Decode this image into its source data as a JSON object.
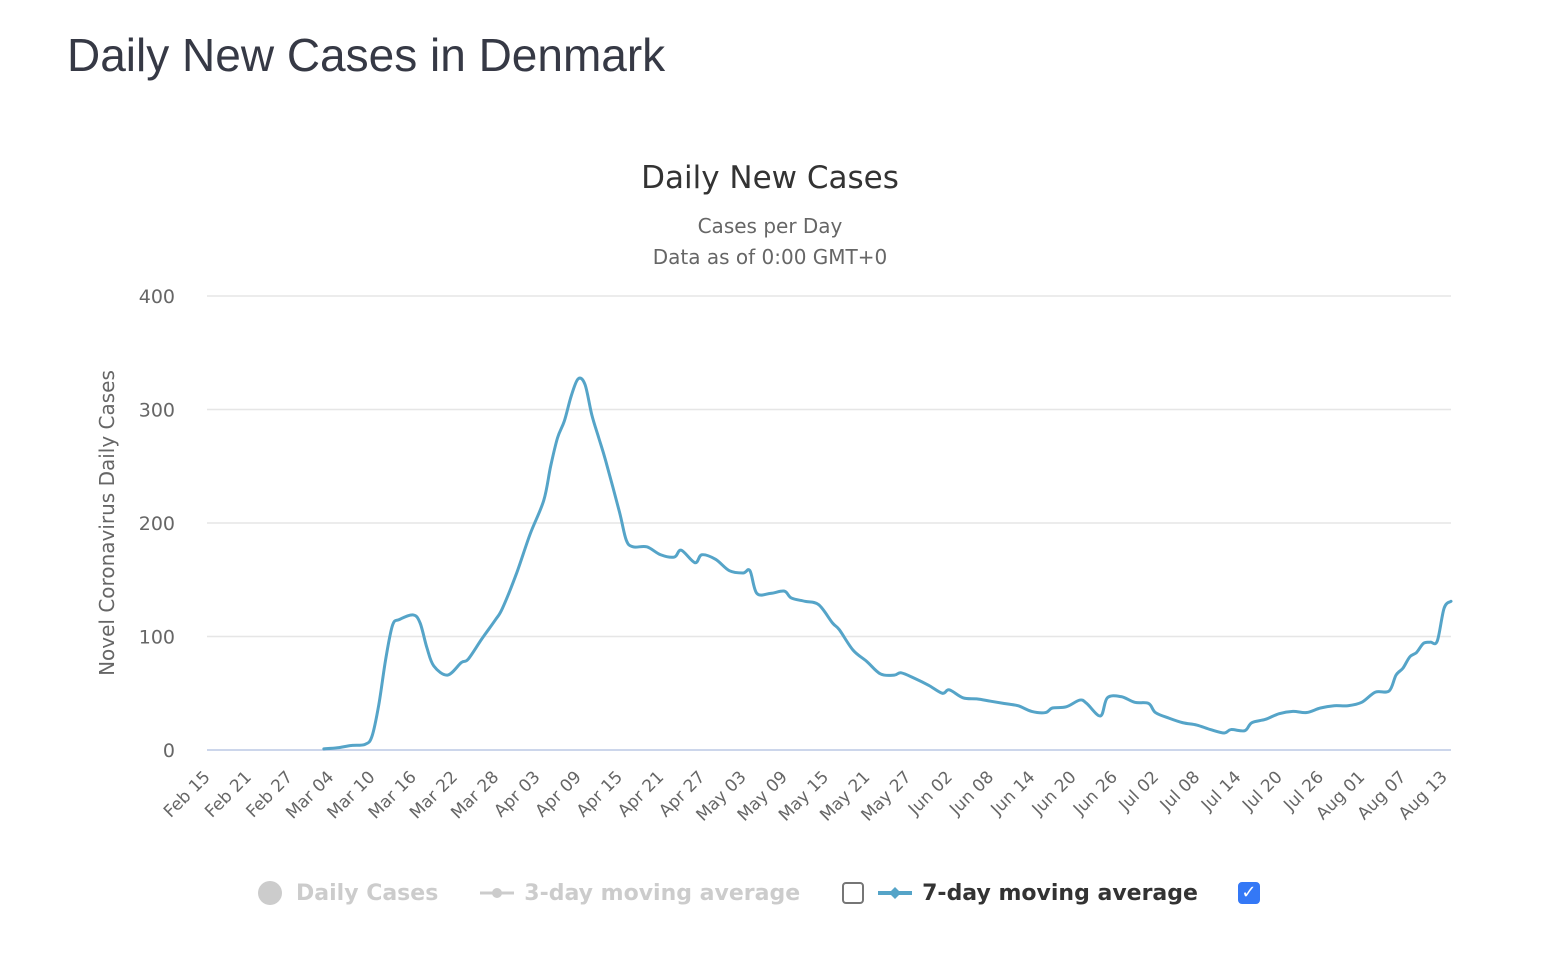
{
  "page": {
    "title": "Daily New Cases in Denmark"
  },
  "chart_header": {
    "title": "Daily New Cases",
    "subtitle_line1": "Cases per Day",
    "subtitle_line2": "Data as of 0:00 GMT+0"
  },
  "legend": {
    "items": [
      {
        "label": "Daily Cases",
        "state": "hidden",
        "marker": "circle"
      },
      {
        "label": "3-day moving average",
        "state": "hidden",
        "marker": "line-circle"
      },
      {
        "label": "7-day moving average",
        "state": "visible",
        "marker": "line-diamond",
        "color": "#55a4c8"
      }
    ],
    "checkbox_left_checked": false,
    "checkbox_right_checked": true,
    "checkmark": "✓"
  },
  "chart_data": {
    "type": "line",
    "title": "Daily New Cases",
    "subtitle": "Cases per Day / Data as of 0:00 GMT+0",
    "xlabel": "",
    "ylabel": "Novel Coronavirus Daily Cases",
    "ylim": [
      0,
      400
    ],
    "yticks": [
      0,
      100,
      200,
      300,
      400
    ],
    "grid": true,
    "legend_position": "bottom",
    "x_start": "Feb 15",
    "x_end": "Aug 14",
    "xticks": [
      "Feb 15",
      "Feb 21",
      "Feb 27",
      "Mar 04",
      "Mar 10",
      "Mar 16",
      "Mar 22",
      "Mar 28",
      "Apr 03",
      "Apr 09",
      "Apr 15",
      "Apr 21",
      "Apr 27",
      "May 03",
      "May 09",
      "May 15",
      "May 21",
      "May 27",
      "Jun 02",
      "Jun 08",
      "Jun 14",
      "Jun 20",
      "Jun 26",
      "Jul 02",
      "Jul 08",
      "Jul 14",
      "Jul 20",
      "Jul 26",
      "Aug 01",
      "Aug 07",
      "Aug 13"
    ],
    "series": [
      {
        "name": "7-day moving average",
        "color": "#55a4c8",
        "points": [
          [
            "Mar 03",
            1
          ],
          [
            "Mar 05",
            2
          ],
          [
            "Mar 07",
            4
          ],
          [
            "Mar 09",
            5
          ],
          [
            "Mar 10",
            12
          ],
          [
            "Mar 11",
            40
          ],
          [
            "Mar 12",
            80
          ],
          [
            "Mar 13",
            110
          ],
          [
            "Mar 14",
            115
          ],
          [
            "Mar 16",
            119
          ],
          [
            "Mar 17",
            112
          ],
          [
            "Mar 18",
            90
          ],
          [
            "Mar 19",
            74
          ],
          [
            "Mar 21",
            66
          ],
          [
            "Mar 23",
            77
          ],
          [
            "Mar 24",
            80
          ],
          [
            "Mar 26",
            98
          ],
          [
            "Mar 28",
            115
          ],
          [
            "Mar 29",
            125
          ],
          [
            "Mar 31",
            155
          ],
          [
            "Apr 02",
            190
          ],
          [
            "Apr 04",
            220
          ],
          [
            "Apr 05",
            250
          ],
          [
            "Apr 06",
            275
          ],
          [
            "Apr 07",
            290
          ],
          [
            "Apr 08",
            312
          ],
          [
            "Apr 09",
            327
          ],
          [
            "Apr 10",
            322
          ],
          [
            "Apr 11",
            295
          ],
          [
            "Apr 12",
            275
          ],
          [
            "Apr 13",
            255
          ],
          [
            "Apr 15",
            210
          ],
          [
            "Apr 16",
            185
          ],
          [
            "Apr 17",
            179
          ],
          [
            "Apr 19",
            179
          ],
          [
            "Apr 21",
            172
          ],
          [
            "Apr 23",
            170
          ],
          [
            "Apr 24",
            176
          ],
          [
            "Apr 26",
            165
          ],
          [
            "Apr 27",
            172
          ],
          [
            "Apr 29",
            168
          ],
          [
            "May 01",
            158
          ],
          [
            "May 03",
            156
          ],
          [
            "May 04",
            158
          ],
          [
            "May 05",
            138
          ],
          [
            "May 07",
            138
          ],
          [
            "May 09",
            140
          ],
          [
            "May 10",
            134
          ],
          [
            "May 12",
            131
          ],
          [
            "May 14",
            128
          ],
          [
            "May 16",
            112
          ],
          [
            "May 17",
            106
          ],
          [
            "May 19",
            88
          ],
          [
            "May 21",
            78
          ],
          [
            "May 23",
            67
          ],
          [
            "May 25",
            66
          ],
          [
            "May 26",
            68
          ],
          [
            "May 28",
            63
          ],
          [
            "May 30",
            57
          ],
          [
            "Jun 01",
            50
          ],
          [
            "Jun 02",
            53
          ],
          [
            "Jun 04",
            46
          ],
          [
            "Jun 06",
            45
          ],
          [
            "Jun 08",
            43
          ],
          [
            "Jun 10",
            41
          ],
          [
            "Jun 12",
            39
          ],
          [
            "Jun 14",
            34
          ],
          [
            "Jun 16",
            33
          ],
          [
            "Jun 17",
            37
          ],
          [
            "Jun 19",
            38
          ],
          [
            "Jun 21",
            44
          ],
          [
            "Jun 22",
            41
          ],
          [
            "Jun 24",
            30
          ],
          [
            "Jun 25",
            46
          ],
          [
            "Jun 27",
            47
          ],
          [
            "Jun 29",
            42
          ],
          [
            "Jul 01",
            41
          ],
          [
            "Jul 02",
            33
          ],
          [
            "Jul 04",
            28
          ],
          [
            "Jul 06",
            24
          ],
          [
            "Jul 08",
            22
          ],
          [
            "Jul 10",
            18
          ],
          [
            "Jul 12",
            15
          ],
          [
            "Jul 13",
            18
          ],
          [
            "Jul 15",
            17
          ],
          [
            "Jul 16",
            24
          ],
          [
            "Jul 18",
            27
          ],
          [
            "Jul 20",
            32
          ],
          [
            "Jul 22",
            34
          ],
          [
            "Jul 24",
            33
          ],
          [
            "Jul 26",
            37
          ],
          [
            "Jul 28",
            39
          ],
          [
            "Jul 30",
            39
          ],
          [
            "Aug 01",
            42
          ],
          [
            "Aug 03",
            51
          ],
          [
            "Aug 05",
            52
          ],
          [
            "Aug 06",
            66
          ],
          [
            "Aug 07",
            72
          ],
          [
            "Aug 08",
            82
          ],
          [
            "Aug 09",
            86
          ],
          [
            "Aug 10",
            94
          ],
          [
            "Aug 11",
            95
          ],
          [
            "Aug 12",
            96
          ],
          [
            "Aug 13",
            125
          ],
          [
            "Aug 14",
            131
          ]
        ]
      }
    ]
  }
}
